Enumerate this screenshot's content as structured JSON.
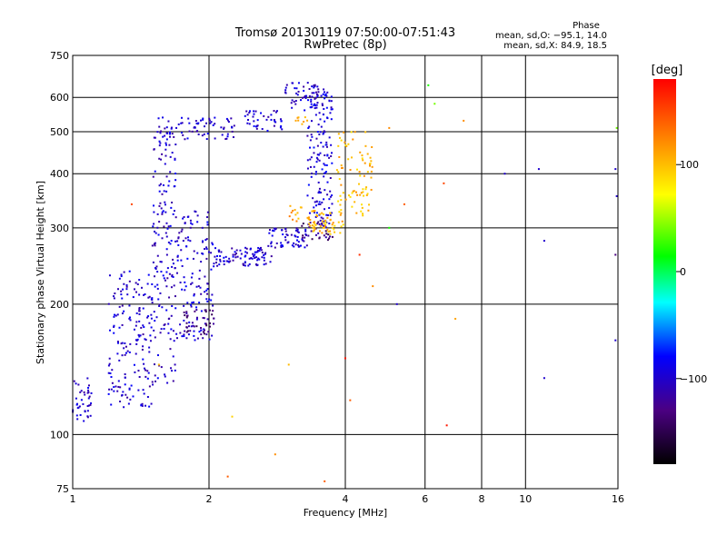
{
  "chart_data": {
    "type": "scatter",
    "title": "Tromsø 20130119 07:50:00-07:51:43",
    "subtitle": "RwPretec (8p)",
    "xlabel": "Frequency [MHz]",
    "ylabel": "Stationary phase Virtual Height [km]",
    "x_scale": "log",
    "y_scale": "log",
    "xlim": [
      1,
      16
    ],
    "ylim": [
      75,
      750
    ],
    "x_ticks": [
      1,
      2,
      4,
      6,
      8,
      10,
      16
    ],
    "y_ticks": [
      75,
      100,
      200,
      300,
      400,
      500,
      600,
      750
    ],
    "grid": true,
    "stats": {
      "heading": "Phase",
      "line1": "mean, sd,O: −95.1, 14.0",
      "line2": "mean, sd,X:  84.9, 18.5"
    },
    "colorbar": {
      "label": "[deg]",
      "range": [
        -180,
        180
      ],
      "ticks": [
        "100",
        "0",
        "−100"
      ],
      "tick_values": [
        100,
        0,
        -100
      ],
      "colors": [
        "#000000",
        "#4b0082",
        "#0000ff",
        "#00ffff",
        "#00ff00",
        "#ffff00",
        "#ff8000",
        "#ff0000"
      ]
    },
    "series": [
      {
        "segments": [
          {
            "f0": 1.0,
            "f1": 1.1,
            "h0": 105,
            "h1": 135,
            "n": 40,
            "phase": -100
          },
          {
            "f0": 1.2,
            "f1": 1.5,
            "h0": 115,
            "h1": 240,
            "n": 170,
            "phase": -100
          },
          {
            "f0": 1.5,
            "f1": 1.7,
            "h0": 130,
            "h1": 540,
            "n": 170,
            "phase": -100
          },
          {
            "f0": 1.7,
            "f1": 2.05,
            "h0": 165,
            "h1": 330,
            "n": 130,
            "phase": -98
          },
          {
            "f0": 1.75,
            "f1": 2.05,
            "h0": 170,
            "h1": 195,
            "n": 40,
            "phase": -130
          },
          {
            "f0": 1.55,
            "f1": 2.3,
            "h0": 480,
            "h1": 540,
            "n": 70,
            "phase": -100
          },
          {
            "f0": 2.05,
            "f1": 2.75,
            "h0": 245,
            "h1": 270,
            "n": 90,
            "phase": -100
          },
          {
            "f0": 2.7,
            "f1": 3.3,
            "h0": 270,
            "h1": 300,
            "n": 60,
            "phase": -100
          },
          {
            "f0": 2.4,
            "f1": 2.9,
            "h0": 500,
            "h1": 560,
            "n": 40,
            "phase": -100
          },
          {
            "f0": 2.9,
            "f1": 3.5,
            "h0": 560,
            "h1": 650,
            "n": 45,
            "phase": -100
          },
          {
            "f0": 3.3,
            "f1": 3.75,
            "h0": 300,
            "h1": 630,
            "n": 160,
            "phase": -95
          },
          {
            "f0": 3.2,
            "f1": 3.75,
            "h0": 280,
            "h1": 310,
            "n": 30,
            "phase": -130
          },
          {
            "f0": 3.3,
            "f1": 4.0,
            "h0": 290,
            "h1": 330,
            "n": 60,
            "phase": 100
          },
          {
            "f0": 3.8,
            "f1": 4.6,
            "h0": 320,
            "h1": 500,
            "n": 80,
            "phase": 100
          },
          {
            "f0": 3.0,
            "f1": 3.2,
            "h0": 310,
            "h1": 340,
            "n": 12,
            "phase": 110
          },
          {
            "f0": 3.1,
            "f1": 3.3,
            "h0": 520,
            "h1": 540,
            "n": 8,
            "phase": 110
          }
        ],
        "sparse": [
          {
            "f": 2.2,
            "h": 80,
            "phase": 140
          },
          {
            "f": 2.8,
            "h": 90,
            "phase": 120
          },
          {
            "f": 3.6,
            "h": 78,
            "phase": 140
          },
          {
            "f": 4.0,
            "h": 150,
            "phase": 170
          },
          {
            "f": 4.1,
            "h": 120,
            "phase": 140
          },
          {
            "f": 5.0,
            "h": 510,
            "phase": 120
          },
          {
            "f": 5.4,
            "h": 340,
            "phase": 140
          },
          {
            "f": 6.1,
            "h": 640,
            "phase": 20
          },
          {
            "f": 6.3,
            "h": 580,
            "phase": 40
          },
          {
            "f": 6.6,
            "h": 380,
            "phase": 150
          },
          {
            "f": 7.0,
            "h": 185,
            "phase": 110
          },
          {
            "f": 7.3,
            "h": 530,
            "phase": 120
          },
          {
            "f": 9.0,
            "h": 400,
            "phase": -100
          },
          {
            "f": 10.7,
            "h": 410,
            "phase": -100
          },
          {
            "f": 11.0,
            "h": 280,
            "phase": -100
          },
          {
            "f": 11.0,
            "h": 135,
            "phase": -100
          },
          {
            "f": 15.8,
            "h": 260,
            "phase": -130
          },
          {
            "f": 15.8,
            "h": 165,
            "phase": -100
          },
          {
            "f": 15.8,
            "h": 410,
            "phase": -100
          },
          {
            "f": 15.9,
            "h": 510,
            "phase": 40
          },
          {
            "f": 15.9,
            "h": 355,
            "phase": -100
          },
          {
            "f": 1.35,
            "h": 340,
            "phase": 150
          },
          {
            "f": 1.55,
            "h": 145,
            "phase": 100
          },
          {
            "f": 3.0,
            "h": 145,
            "phase": 100
          },
          {
            "f": 4.6,
            "h": 220,
            "phase": 120
          },
          {
            "f": 6.7,
            "h": 105,
            "phase": 170
          },
          {
            "f": 2.25,
            "h": 110,
            "phase": 90
          },
          {
            "f": 5.2,
            "h": 200,
            "phase": -100
          },
          {
            "f": 4.3,
            "h": 260,
            "phase": 160
          },
          {
            "f": 5.0,
            "h": 300,
            "phase": 20
          }
        ]
      }
    ]
  }
}
